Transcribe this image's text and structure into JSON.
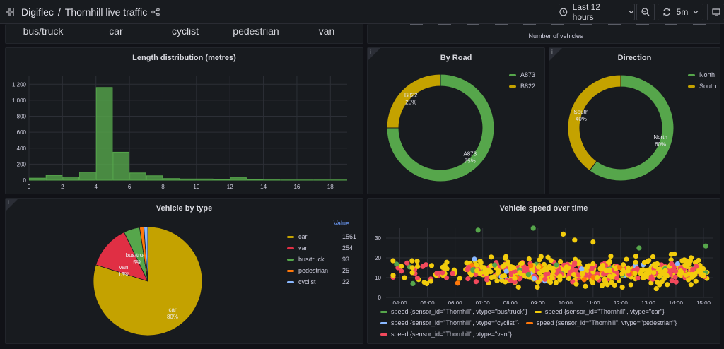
{
  "header": {
    "app_icon": "grid-icon",
    "org": "Digiflec",
    "separator": "/",
    "dashboard": "Thornhill live traffic",
    "time_range": "Last 12 hours",
    "refresh": "5m"
  },
  "top_panel": {
    "types": [
      "bus/truck",
      "car",
      "cyclist",
      "pedestrian",
      "van"
    ],
    "xlabel": "Number of vehicles"
  },
  "length_panel": {
    "title": "Length distribution (metres)",
    "chart_data": {
      "type": "bar",
      "x_start": [
        0,
        1,
        2,
        3,
        4,
        5,
        6,
        7,
        8,
        9,
        10,
        11,
        12,
        13,
        14,
        15,
        16,
        17,
        18
      ],
      "values": [
        25,
        60,
        40,
        100,
        1160,
        350,
        90,
        55,
        20,
        15,
        15,
        8,
        30,
        5,
        3,
        2,
        2,
        2,
        2
      ],
      "xticks": [
        "0",
        "2",
        "4",
        "6",
        "8",
        "10",
        "12",
        "14",
        "16",
        "18"
      ],
      "yticks": [
        "0",
        "200",
        "400",
        "600",
        "800",
        "1,000",
        "1,200"
      ],
      "ylim": [
        0,
        1300
      ],
      "xlim": [
        0,
        19
      ],
      "color": "#56a64b"
    }
  },
  "road_panel": {
    "title": "By Road",
    "chart_data": {
      "type": "pie",
      "donut": true,
      "slices": [
        {
          "name": "A873",
          "value": 75,
          "label": "A873",
          "pct": "75%",
          "color": "#56a64b"
        },
        {
          "name": "B822",
          "value": 25,
          "label": "B822",
          "pct": "25%",
          "color": "#c4a200"
        }
      ]
    }
  },
  "direction_panel": {
    "title": "Direction",
    "chart_data": {
      "type": "pie",
      "donut": true,
      "slices": [
        {
          "name": "North",
          "value": 60,
          "label": "North",
          "pct": "60%",
          "color": "#56a64b"
        },
        {
          "name": "South",
          "value": 40,
          "label": "South",
          "pct": "40%",
          "color": "#c4a200"
        }
      ]
    }
  },
  "type_panel": {
    "title": "Vehicle by type",
    "value_header": "Value",
    "chart_data": {
      "type": "pie",
      "slices": [
        {
          "name": "car",
          "value": 1561,
          "label": "car",
          "pct": "80%",
          "color": "#c4a200"
        },
        {
          "name": "van",
          "value": 254,
          "label": "van",
          "pct": "13%",
          "color": "#e02f44"
        },
        {
          "name": "bus/truck",
          "value": 93,
          "label": "bus/truck",
          "pct": "5%",
          "color": "#56a64b"
        },
        {
          "name": "pedestrian",
          "value": 25,
          "label": "",
          "pct": "",
          "color": "#ff780a"
        },
        {
          "name": "cyclist",
          "value": 22,
          "label": "",
          "pct": "",
          "color": "#8ab8ff"
        }
      ],
      "legend_order": [
        "car",
        "van",
        "bus/truck",
        "pedestrian",
        "cyclist"
      ]
    }
  },
  "speed_panel": {
    "title": "Vehicle speed over time",
    "chart_data": {
      "type": "scatter",
      "xticks": [
        "04:00",
        "05:00",
        "06:00",
        "07:00",
        "08:00",
        "09:00",
        "10:00",
        "11:00",
        "12:00",
        "13:00",
        "14:00",
        "15:00"
      ],
      "yticks": [
        "0",
        "10",
        "20",
        "30"
      ],
      "xlim": [
        "03:30",
        "15:20"
      ],
      "ylim": [
        0,
        35
      ],
      "series": [
        {
          "name": "speed {sensor_id=\"Thornhill\", vtype=\"bus/truck\"}",
          "color": "#56a64b"
        },
        {
          "name": "speed {sensor_id=\"Thornhill\", vtype=\"car\"}",
          "color": "#f2cc0c"
        },
        {
          "name": "speed {sensor_id=\"Thornhill\", vtype=\"cyclist\"}",
          "color": "#8ab8ff"
        },
        {
          "name": "speed {sensor_id=\"Thornhill\", vtype=\"pedestrian\"}",
          "color": "#ff780a"
        },
        {
          "name": "speed {sensor_id=\"Thornhill\", vtype=\"van\"}",
          "color": "#f2495c"
        }
      ],
      "highlights": [
        {
          "series": 0,
          "x": "06:50",
          "y": 34
        },
        {
          "series": 0,
          "x": "08:50",
          "y": 35
        },
        {
          "series": 0,
          "x": "12:40",
          "y": 25
        },
        {
          "series": 0,
          "x": "15:05",
          "y": 26
        },
        {
          "series": 1,
          "x": "09:55",
          "y": 32
        },
        {
          "series": 1,
          "x": "11:00",
          "y": 28
        },
        {
          "series": 1,
          "x": "10:20",
          "y": 29
        }
      ]
    }
  }
}
